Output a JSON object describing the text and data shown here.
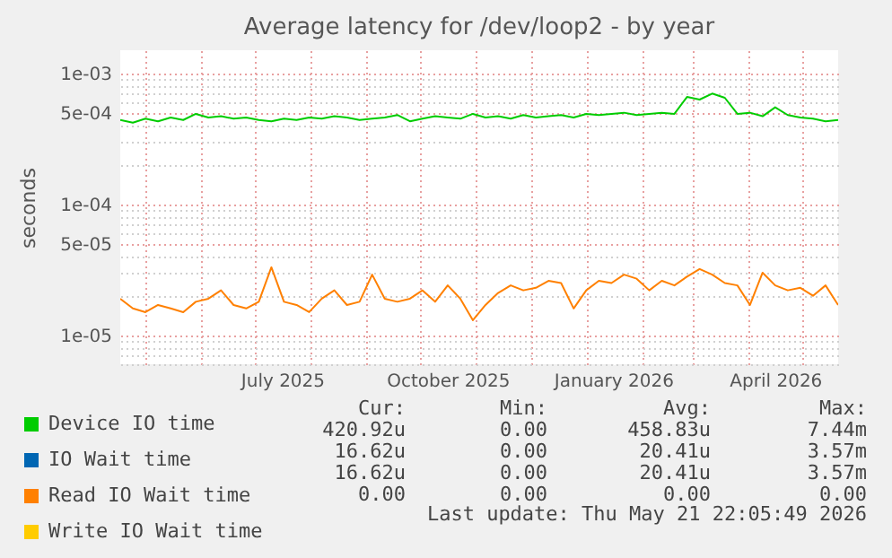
{
  "chart_data": {
    "type": "line",
    "title": "Average latency for /dev/loop2 - by year",
    "ylabel": "seconds",
    "log": "y",
    "grid": true,
    "legend": "bottom",
    "x": [
      "2025-04-17",
      "2025-04-24",
      "2025-05-01",
      "2025-05-08",
      "2025-05-15",
      "2025-05-22",
      "2025-05-29",
      "2025-06-05",
      "2025-06-12",
      "2025-06-19",
      "2025-06-26",
      "2025-07-03",
      "2025-07-10",
      "2025-07-17",
      "2025-07-24",
      "2025-07-31",
      "2025-08-07",
      "2025-08-14",
      "2025-08-21",
      "2025-08-28",
      "2025-09-04",
      "2025-09-11",
      "2025-09-18",
      "2025-09-25",
      "2025-10-02",
      "2025-10-09",
      "2025-10-16",
      "2025-10-23",
      "2025-10-30",
      "2025-11-06",
      "2025-11-13",
      "2025-11-20",
      "2025-11-27",
      "2025-12-04",
      "2025-12-11",
      "2025-12-18",
      "2025-12-25",
      "2026-01-01",
      "2026-01-08",
      "2026-01-15",
      "2026-01-22",
      "2026-01-29",
      "2026-02-05",
      "2026-02-12",
      "2026-02-19",
      "2026-02-26",
      "2026-03-05",
      "2026-03-12",
      "2026-03-19",
      "2026-03-26",
      "2026-04-02",
      "2026-04-09",
      "2026-04-16",
      "2026-04-23",
      "2026-04-30",
      "2026-05-07",
      "2026-05-14",
      "2026-05-21"
    ],
    "xlim": [
      "2025-04-17",
      "2026-05-21"
    ],
    "xticks": [
      {
        "value": "2025-05-01",
        "label": null
      },
      {
        "value": "2025-06-01",
        "label": null
      },
      {
        "value": "2025-07-01",
        "label": null
      },
      {
        "value": "2025-07-16",
        "label": "July 2025"
      },
      {
        "value": "2025-08-01",
        "label": null
      },
      {
        "value": "2025-09-01",
        "label": null
      },
      {
        "value": "2025-10-01",
        "label": null
      },
      {
        "value": "2025-10-16",
        "label": "October 2025"
      },
      {
        "value": "2025-11-01",
        "label": null
      },
      {
        "value": "2025-12-01",
        "label": null
      },
      {
        "value": "2026-01-01",
        "label": null
      },
      {
        "value": "2026-01-16",
        "label": "January 2026"
      },
      {
        "value": "2026-02-01",
        "label": null
      },
      {
        "value": "2026-03-01",
        "label": null
      },
      {
        "value": "2026-04-01",
        "label": null
      },
      {
        "value": "2026-04-16",
        "label": "April 2026"
      },
      {
        "value": "2026-05-01",
        "label": null
      }
    ],
    "ylim": [
      6e-06,
      0.0015
    ],
    "yticks": [
      {
        "value": 6e-06,
        "label": null
      },
      {
        "value": 7e-06,
        "label": null
      },
      {
        "value": 8e-06,
        "label": null
      },
      {
        "value": 9e-06,
        "label": null
      },
      {
        "value": 1e-05,
        "label": "1e-05"
      },
      {
        "value": 2e-05,
        "label": null
      },
      {
        "value": 3e-05,
        "label": null
      },
      {
        "value": 4e-05,
        "label": null
      },
      {
        "value": 5e-05,
        "label": "5e-05"
      },
      {
        "value": 6e-05,
        "label": null
      },
      {
        "value": 7e-05,
        "label": null
      },
      {
        "value": 8e-05,
        "label": null
      },
      {
        "value": 9e-05,
        "label": null
      },
      {
        "value": 0.0001,
        "label": "1e-04"
      },
      {
        "value": 0.0002,
        "label": null
      },
      {
        "value": 0.0003,
        "label": null
      },
      {
        "value": 0.0004,
        "label": null
      },
      {
        "value": 0.0005,
        "label": "5e-04"
      },
      {
        "value": 0.0006,
        "label": null
      },
      {
        "value": 0.0007,
        "label": null
      },
      {
        "value": 0.0008,
        "label": null
      },
      {
        "value": 0.0009,
        "label": null
      },
      {
        "value": 0.001,
        "label": "1e-03"
      }
    ],
    "series": [
      {
        "name": "Device IO time",
        "color": "#00cc00",
        "values": [
          0.00044,
          0.00042,
          0.00045,
          0.00043,
          0.00046,
          0.00044,
          0.00049,
          0.00046,
          0.00047,
          0.00045,
          0.00046,
          0.00044,
          0.00043,
          0.00045,
          0.00044,
          0.00046,
          0.00045,
          0.00047,
          0.00046,
          0.00044,
          0.00045,
          0.00046,
          0.00048,
          0.00043,
          0.00045,
          0.00047,
          0.00046,
          0.00045,
          0.00049,
          0.00046,
          0.00047,
          0.00045,
          0.00048,
          0.00046,
          0.00047,
          0.00048,
          0.00046,
          0.00049,
          0.00048,
          0.00049,
          0.0005,
          0.00048,
          0.00049,
          0.0005,
          0.00049,
          0.00066,
          0.00063,
          0.0007,
          0.00065,
          0.00049,
          0.0005,
          0.00047,
          0.00055,
          0.00048,
          0.00046,
          0.00045,
          0.00043,
          0.00044
        ]
      },
      {
        "name": "IO Wait time",
        "color": "#0066b3",
        "values": [
          null,
          null,
          null,
          null,
          null,
          null,
          null,
          null,
          null,
          null,
          null,
          null,
          null,
          null,
          null,
          null,
          null,
          null,
          null,
          null,
          null,
          null,
          null,
          null,
          null,
          null,
          null,
          null,
          null,
          null,
          null,
          null,
          null,
          null,
          null,
          null,
          null,
          null,
          null,
          null,
          null,
          null,
          null,
          null,
          null,
          null,
          null,
          null,
          null,
          null,
          null,
          null,
          null,
          null,
          null,
          null,
          null,
          null
        ]
      },
      {
        "name": "Read IO Wait time",
        "color": "#ff8000",
        "values": [
          1.9e-05,
          1.6e-05,
          1.5e-05,
          1.7e-05,
          1.6e-05,
          1.5e-05,
          1.8e-05,
          1.9e-05,
          2.2e-05,
          1.7e-05,
          1.6e-05,
          1.8e-05,
          3.3e-05,
          1.8e-05,
          1.7e-05,
          1.5e-05,
          1.9e-05,
          2.2e-05,
          1.7e-05,
          1.8e-05,
          2.9e-05,
          1.9e-05,
          1.8e-05,
          1.9e-05,
          2.2e-05,
          1.8e-05,
          2.4e-05,
          1.9e-05,
          1.3e-05,
          1.7e-05,
          2.1e-05,
          2.4e-05,
          2.2e-05,
          2.3e-05,
          2.6e-05,
          2.5e-05,
          1.6e-05,
          2.2e-05,
          2.6e-05,
          2.5e-05,
          2.9e-05,
          2.7e-05,
          2.2e-05,
          2.6e-05,
          2.4e-05,
          2.8e-05,
          3.2e-05,
          2.9e-05,
          2.5e-05,
          2.4e-05,
          1.7e-05,
          3e-05,
          2.4e-05,
          2.2e-05,
          2.3e-05,
          2e-05,
          2.4e-05,
          1.7e-05
        ]
      },
      {
        "name": "Write IO Wait time",
        "color": "#ffcc00",
        "values": [
          null,
          null,
          null,
          null,
          null,
          null,
          null,
          null,
          null,
          null,
          null,
          null,
          null,
          null,
          null,
          null,
          null,
          null,
          null,
          null,
          null,
          null,
          null,
          null,
          null,
          null,
          null,
          null,
          null,
          null,
          null,
          null,
          null,
          null,
          null,
          null,
          null,
          null,
          null,
          null,
          null,
          null,
          null,
          null,
          null,
          null,
          null,
          null,
          null,
          null,
          null,
          null,
          null,
          null,
          null,
          null,
          null,
          null
        ]
      }
    ],
    "annotations": [
      "Cur:",
      "Min:",
      "Avg:",
      "Max:",
      "420.92u",
      "0.00",
      "458.83u",
      "7.44m",
      "16.62u",
      "0.00",
      "20.41u",
      "3.57m",
      "16.62u",
      "0.00",
      "20.41u",
      "3.57m",
      "0.00",
      "0.00",
      "0.00",
      "0.00",
      "Last update: Thu May 21 22:05:49 2026"
    ]
  }
}
